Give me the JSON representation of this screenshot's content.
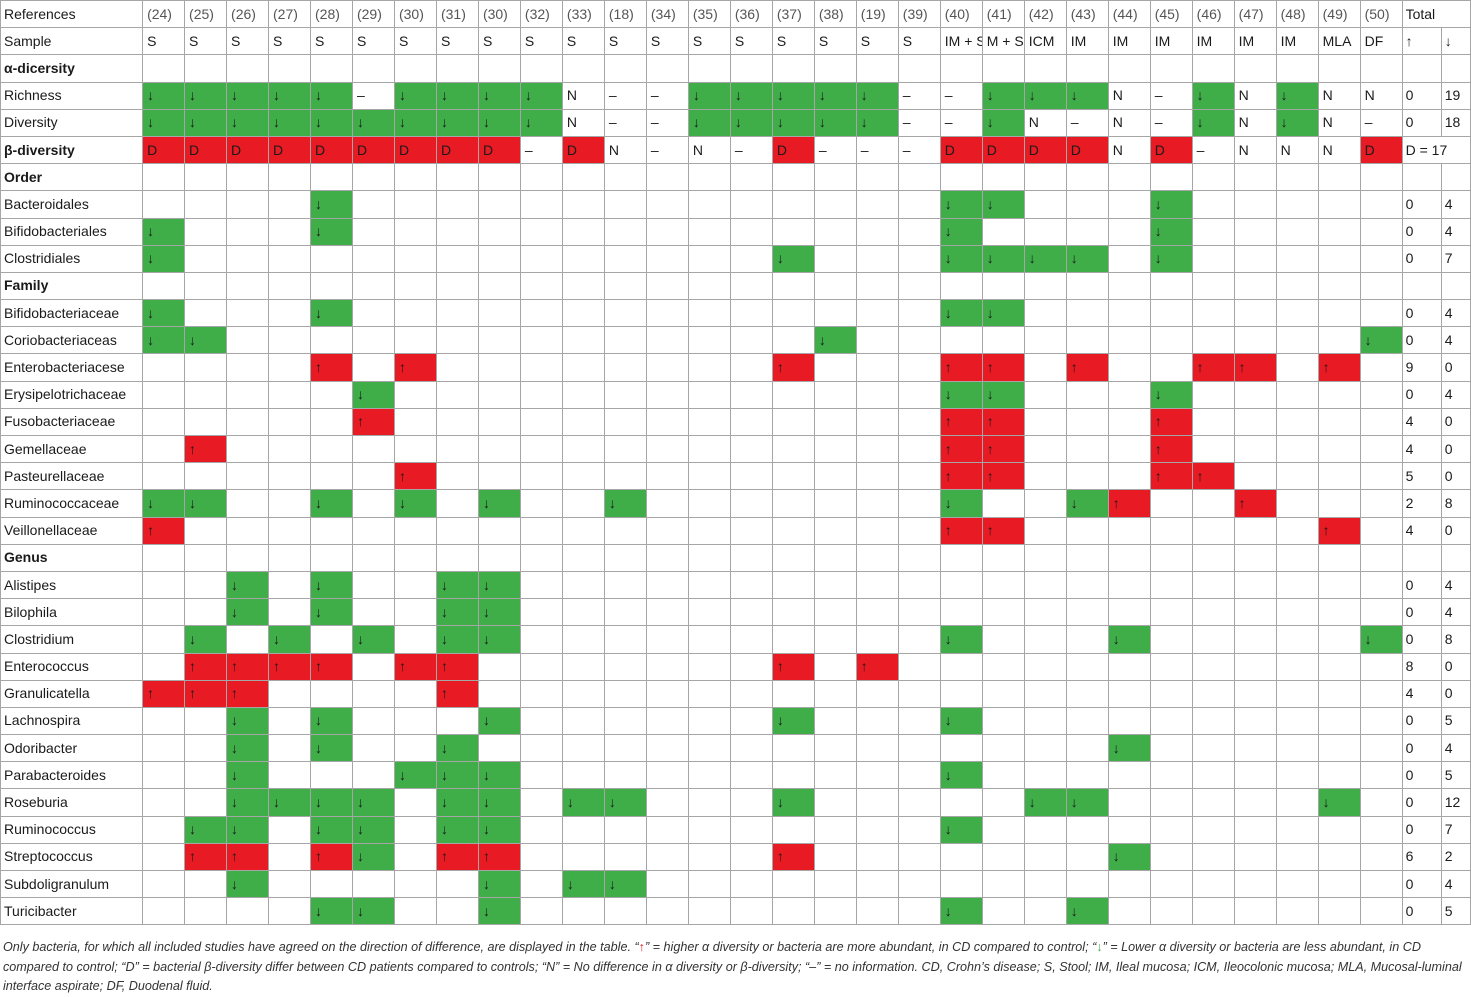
{
  "colors": {
    "green": "#3fae49",
    "red": "#e81a23"
  },
  "refs_header": {
    "label": "References",
    "refs": [
      "(24)",
      "(25)",
      "(26)",
      "(27)",
      "(28)",
      "(29)",
      "(30)",
      "(31)",
      "(30)",
      "(32)",
      "(33)",
      "(18)",
      "(34)",
      "(35)",
      "(36)",
      "(37)",
      "(38)",
      "(19)",
      "(39)",
      "(40)",
      "(41)",
      "(42)",
      "(43)",
      "(44)",
      "(45)",
      "(46)",
      "(47)",
      "(48)",
      "(49)",
      "(50)"
    ],
    "total": "Total"
  },
  "sample_header": {
    "label": "Sample",
    "samples": [
      "S",
      "S",
      "S",
      "S",
      "S",
      "S",
      "S",
      "S",
      "S",
      "S",
      "S",
      "S",
      "S",
      "S",
      "S",
      "S",
      "S",
      "S",
      "S",
      "IM + S",
      "M + S",
      "ICM",
      "IM",
      "IM",
      "IM",
      "IM",
      "IM",
      "IM",
      "MLA",
      "DF"
    ],
    "up": "↑",
    "down": "↓"
  },
  "rows": [
    {
      "label": "α-dicersity",
      "section": true
    },
    {
      "label": "Richness",
      "cells": [
        "g",
        "g",
        "g",
        "g",
        "g",
        "–",
        "g",
        "g",
        "g",
        "g",
        "N",
        "–",
        "–",
        "g",
        "g",
        "g",
        "g",
        "g",
        "–",
        "–",
        "g",
        "g",
        "g",
        "N",
        "–",
        "g",
        "N",
        "g",
        "N",
        "N"
      ],
      "up": "0",
      "down": "19"
    },
    {
      "label": "Diversity",
      "cells": [
        "g",
        "g",
        "g",
        "g",
        "g",
        "g",
        "g",
        "g",
        "g",
        "g",
        "N",
        "–",
        "–",
        "g",
        "g",
        "g",
        "g",
        "g",
        "–",
        "–",
        "g",
        "N",
        "–",
        "N",
        "–",
        "g",
        "N",
        "g",
        "N",
        "–"
      ],
      "up": "0",
      "down": "18"
    },
    {
      "label": "β-diversity",
      "section": true,
      "cells": [
        "D",
        "D",
        "D",
        "D",
        "D",
        "D",
        "D",
        "D",
        "D",
        "–",
        "D",
        "N",
        "–",
        "N",
        "–",
        "D",
        "–",
        "–",
        "–",
        "D",
        "D",
        "D",
        "D",
        "N",
        "D",
        "–",
        "N",
        "N",
        "N",
        "D"
      ],
      "total": "D = 17"
    },
    {
      "label": "Order",
      "section": true
    },
    {
      "label": "Bacteroidales",
      "cells": [
        "",
        "",
        "",
        "",
        "g",
        "",
        "",
        "",
        "",
        "",
        "",
        "",
        "",
        "",
        "",
        "",
        "",
        "",
        "",
        "g",
        "g",
        "",
        "",
        "",
        "g",
        "",
        "",
        "",
        "",
        ""
      ],
      "up": "0",
      "down": "4"
    },
    {
      "label": "Bifidobacteriales",
      "cells": [
        "g",
        "",
        "",
        "",
        "g",
        "",
        "",
        "",
        "",
        "",
        "",
        "",
        "",
        "",
        "",
        "",
        "",
        "",
        "",
        "g",
        "",
        "",
        "",
        "",
        "g",
        "",
        "",
        "",
        "",
        ""
      ],
      "up": "0",
      "down": "4"
    },
    {
      "label": "Clostridiales",
      "cells": [
        "g",
        "",
        "",
        "",
        "",
        "",
        "",
        "",
        "",
        "",
        "",
        "",
        "",
        "",
        "",
        "g",
        "",
        "",
        "",
        "g",
        "g",
        "g",
        "g",
        "",
        "g",
        "",
        "",
        "",
        "",
        ""
      ],
      "up": "0",
      "down": "7"
    },
    {
      "label": "Family",
      "section": true
    },
    {
      "label": "Bifidobacteriaceae",
      "cells": [
        "g",
        "",
        "",
        "",
        "g",
        "",
        "",
        "",
        "",
        "",
        "",
        "",
        "",
        "",
        "",
        "",
        "",
        "",
        "",
        "g",
        "g",
        "",
        "",
        "",
        "",
        "",
        "",
        "",
        "",
        ""
      ],
      "up": "0",
      "down": "4"
    },
    {
      "label": "Coriobacteriaceas",
      "cells": [
        "g",
        "g",
        "",
        "",
        "",
        "",
        "",
        "",
        "",
        "",
        "",
        "",
        "",
        "",
        "",
        "",
        "g",
        "",
        "",
        "",
        "",
        "",
        "",
        "",
        "",
        "",
        "",
        "",
        "",
        "g"
      ],
      "up": "0",
      "down": "4"
    },
    {
      "label": "Enterobacteriacese",
      "cells": [
        "",
        "",
        "",
        "",
        "r",
        "",
        "r",
        "",
        "",
        "",
        "",
        "",
        "",
        "",
        "",
        "r",
        "",
        "",
        "",
        "r",
        "r",
        "",
        "r",
        "",
        "",
        "r",
        "r",
        "",
        "r",
        ""
      ],
      "up": "9",
      "down": "0"
    },
    {
      "label": "Erysipelotrichaceae",
      "cells": [
        "",
        "",
        "",
        "",
        "",
        "g",
        "",
        "",
        "",
        "",
        "",
        "",
        "",
        "",
        "",
        "",
        "",
        "",
        "",
        "g",
        "g",
        "",
        "",
        "",
        "g",
        "",
        "",
        "",
        "",
        ""
      ],
      "up": "0",
      "down": "4"
    },
    {
      "label": "Fusobacteriaceae",
      "cells": [
        "",
        "",
        "",
        "",
        "",
        "r",
        "",
        "",
        "",
        "",
        "",
        "",
        "",
        "",
        "",
        "",
        "",
        "",
        "",
        "r",
        "r",
        "",
        "",
        "",
        "r",
        "",
        "",
        "",
        "",
        ""
      ],
      "up": "4",
      "down": "0"
    },
    {
      "label": "Gemellaceae",
      "cells": [
        "",
        "r",
        "",
        "",
        "",
        "",
        "",
        "",
        "",
        "",
        "",
        "",
        "",
        "",
        "",
        "",
        "",
        "",
        "",
        "r",
        "r",
        "",
        "",
        "",
        "r",
        "",
        "",
        "",
        "",
        ""
      ],
      "up": "4",
      "down": "0"
    },
    {
      "label": "Pasteurellaceae",
      "cells": [
        "",
        "",
        "",
        "",
        "",
        "",
        "r",
        "",
        "",
        "",
        "",
        "",
        "",
        "",
        "",
        "",
        "",
        "",
        "",
        "r",
        "r",
        "",
        "",
        "",
        "r",
        "r",
        "",
        "",
        "",
        ""
      ],
      "up": "5",
      "down": "0"
    },
    {
      "label": "Ruminococcaceae",
      "cells": [
        "g",
        "g",
        "",
        "",
        "g",
        "",
        "g",
        "",
        "g",
        "",
        "",
        "g",
        "",
        "",
        "",
        "",
        "",
        "",
        "",
        "g",
        "",
        "",
        "g",
        "r",
        "",
        "",
        "r",
        "",
        "",
        ""
      ],
      "up": "2",
      "down": "8"
    },
    {
      "label": "Veillonellaceae",
      "cells": [
        "r",
        "",
        "",
        "",
        "",
        "",
        "",
        "",
        "",
        "",
        "",
        "",
        "",
        "",
        "",
        "",
        "",
        "",
        "",
        "r",
        "r",
        "",
        "",
        "",
        "",
        "",
        "",
        "",
        "r",
        ""
      ],
      "up": "4",
      "down": "0"
    },
    {
      "label": "Genus",
      "section": true
    },
    {
      "label": "Alistipes",
      "cells": [
        "",
        "",
        "g",
        "",
        "g",
        "",
        "",
        "g",
        "g",
        "",
        "",
        "",
        "",
        "",
        "",
        "",
        "",
        "",
        "",
        "",
        "",
        "",
        "",
        "",
        "",
        "",
        "",
        "",
        "",
        ""
      ],
      "up": "0",
      "down": "4"
    },
    {
      "label": "Bilophila",
      "cells": [
        "",
        "",
        "g",
        "",
        "g",
        "",
        "",
        "g",
        "g",
        "",
        "",
        "",
        "",
        "",
        "",
        "",
        "",
        "",
        "",
        "",
        "",
        "",
        "",
        "",
        "",
        "",
        "",
        "",
        "",
        ""
      ],
      "up": "0",
      "down": "4"
    },
    {
      "label": "Clostridium",
      "cells": [
        "",
        "g",
        "",
        "g",
        "",
        "g",
        "",
        "g",
        "g",
        "",
        "",
        "",
        "",
        "",
        "",
        "",
        "",
        "",
        "",
        "g",
        "",
        "",
        "",
        "g",
        "",
        "",
        "",
        "",
        "",
        "g"
      ],
      "up": "0",
      "down": "8"
    },
    {
      "label": "Enterococcus",
      "cells": [
        "",
        "r",
        "r",
        "r",
        "r",
        "",
        "r",
        "r",
        "",
        "",
        "",
        "",
        "",
        "",
        "",
        "r",
        "",
        "r",
        "",
        "",
        "",
        "",
        "",
        "",
        "",
        "",
        "",
        "",
        "",
        ""
      ],
      "up": "8",
      "down": "0"
    },
    {
      "label": "Granulicatella",
      "cells": [
        "r",
        "r",
        "r",
        "",
        "",
        "",
        "",
        "r",
        "",
        "",
        "",
        "",
        "",
        "",
        "",
        "",
        "",
        "",
        "",
        "",
        "",
        "",
        "",
        "",
        "",
        "",
        "",
        "",
        "",
        ""
      ],
      "up": "4",
      "down": "0"
    },
    {
      "label": "Lachnospira",
      "cells": [
        "",
        "",
        "g",
        "",
        "g",
        "",
        "",
        "",
        "g",
        "",
        "",
        "",
        "",
        "",
        "",
        "g",
        "",
        "",
        "",
        "g",
        "",
        "",
        "",
        "",
        "",
        "",
        "",
        "",
        "",
        ""
      ],
      "up": "0",
      "down": "5"
    },
    {
      "label": "Odoribacter",
      "cells": [
        "",
        "",
        "g",
        "",
        "g",
        "",
        "",
        "g",
        "",
        "",
        "",
        "",
        "",
        "",
        "",
        "",
        "",
        "",
        "",
        "",
        "",
        "",
        "",
        "g",
        "",
        "",
        "",
        "",
        "",
        ""
      ],
      "up": "0",
      "down": "4"
    },
    {
      "label": "Parabacteroides",
      "cells": [
        "",
        "",
        "g",
        "",
        "",
        "",
        "g",
        "g",
        "g",
        "",
        "",
        "",
        "",
        "",
        "",
        "",
        "",
        "",
        "",
        "g",
        "",
        "",
        "",
        "",
        "",
        "",
        "",
        "",
        "",
        ""
      ],
      "up": "0",
      "down": "5"
    },
    {
      "label": "Roseburia",
      "cells": [
        "",
        "",
        "g",
        "g",
        "g",
        "g",
        "",
        "g",
        "g",
        "",
        "g",
        "g",
        "",
        "",
        "",
        "g",
        "",
        "",
        "",
        "",
        "",
        "g",
        "g",
        "",
        "",
        "",
        "",
        "",
        "g",
        ""
      ],
      "up": "0",
      "down": "12"
    },
    {
      "label": "Ruminococcus",
      "cells": [
        "",
        "g",
        "g",
        "",
        "g",
        "g",
        "",
        "g",
        "g",
        "",
        "",
        "",
        "",
        "",
        "",
        "",
        "",
        "",
        "",
        "g",
        "",
        "",
        "",
        "",
        "",
        "",
        "",
        "",
        "",
        ""
      ],
      "up": "0",
      "down": "7"
    },
    {
      "label": "Streptococcus",
      "cells": [
        "",
        "r",
        "r",
        "",
        "r",
        "g",
        "",
        "r",
        "r",
        "",
        "",
        "",
        "",
        "",
        "",
        "r",
        "",
        "",
        "",
        "",
        "",
        "",
        "",
        "g",
        "",
        "",
        "",
        "",
        "",
        ""
      ],
      "up": "6",
      "down": "2"
    },
    {
      "label": "Subdoligranulum",
      "cells": [
        "",
        "",
        "g",
        "",
        "",
        "",
        "",
        "",
        "g",
        "",
        "g",
        "g",
        "",
        "",
        "",
        "",
        "",
        "",
        "",
        "",
        "",
        "",
        "",
        "",
        "",
        "",
        "",
        "",
        "",
        ""
      ],
      "up": "0",
      "down": "4"
    },
    {
      "label": "Turicibacter",
      "cells": [
        "",
        "",
        "",
        "",
        "g",
        "g",
        "",
        "",
        "g",
        "",
        "",
        "",
        "",
        "",
        "",
        "",
        "",
        "",
        "",
        "g",
        "",
        "",
        "g",
        "",
        "",
        "",
        "",
        "",
        "",
        ""
      ],
      "up": "0",
      "down": "5"
    }
  ],
  "symbols": {
    "g": "↓",
    "r": "↑",
    "D": "D",
    "N": "N",
    "–": "–",
    "": ""
  },
  "footnote": {
    "p1": "Only bacteria, for which all included studies have agreed on the direction of difference, are displayed in the table. “",
    "up_sym": "↑",
    "p2": "” = higher α diversity or bacteria are more abundant, in CD compared to control; “",
    "down_sym": "↓",
    "p3": "” = Lower α diversity or bacteria are less abundant, in CD compared to control; “D” = bacterial β-diversity differ between CD patients compared to controls; “N” = No difference in α diversity or β-diversity; “–” = no information. CD, Crohn’s disease; S, Stool; IM, Ileal mucosa; ICM, Ileocolonic mucosa; MLA, Mucosal-luminal interface aspirate; DF, Duodenal fluid."
  }
}
